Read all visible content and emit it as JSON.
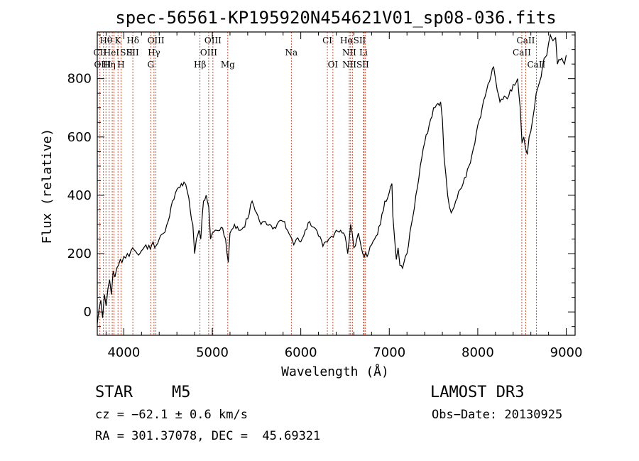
{
  "chart_data": {
    "type": "line",
    "title": "spec-56561-KP195920N454621V01_sp08-036.fits",
    "xlabel": "Wavelength (Å)",
    "ylabel": "Flux (relative)",
    "xlim": [
      3700,
      9100
    ],
    "ylim": [
      -80,
      960
    ],
    "xticks": [
      4000,
      5000,
      6000,
      7000,
      8000,
      9000
    ],
    "yticks": [
      0,
      200,
      400,
      600,
      800
    ],
    "series": [
      {
        "name": "flux",
        "x": [
          3700,
          3720,
          3740,
          3760,
          3780,
          3800,
          3820,
          3840,
          3860,
          3880,
          3900,
          3920,
          3940,
          3960,
          3980,
          4000,
          4020,
          4040,
          4060,
          4080,
          4100,
          4150,
          4200,
          4250,
          4300,
          4330,
          4350,
          4400,
          4450,
          4500,
          4550,
          4600,
          4650,
          4680,
          4720,
          4750,
          4780,
          4800,
          4820,
          4850,
          4870,
          4900,
          4930,
          4960,
          4980,
          5000,
          5050,
          5100,
          5150,
          5180,
          5200,
          5250,
          5300,
          5350,
          5400,
          5450,
          5500,
          5550,
          5600,
          5650,
          5700,
          5750,
          5800,
          5850,
          5900,
          5920,
          5950,
          6000,
          6050,
          6100,
          6150,
          6200,
          6250,
          6300,
          6350,
          6400,
          6450,
          6500,
          6530,
          6563,
          6600,
          6650,
          6700,
          6750,
          6800,
          6850,
          6900,
          6950,
          7000,
          7030,
          7040,
          7060,
          7080,
          7100,
          7120,
          7150,
          7200,
          7250,
          7300,
          7350,
          7400,
          7450,
          7500,
          7550,
          7580,
          7600,
          7620,
          7640,
          7660,
          7680,
          7700,
          7750,
          7800,
          7850,
          7900,
          7950,
          8000,
          8050,
          8100,
          8150,
          8180,
          8200,
          8220,
          8250,
          8300,
          8350,
          8400,
          8450,
          8480,
          8500,
          8520,
          8540,
          8560,
          8580,
          8600,
          8620,
          8640,
          8660,
          8680,
          8700,
          8750,
          8780,
          8800,
          8820,
          8850,
          8880,
          8900,
          8950,
          8980,
          9000
        ],
        "y": [
          -40,
          10,
          40,
          -20,
          60,
          20,
          80,
          110,
          60,
          140,
          120,
          150,
          160,
          180,
          170,
          190,
          185,
          200,
          190,
          210,
          220,
          200,
          210,
          230,
          215,
          240,
          220,
          250,
          270,
          310,
          380,
          420,
          440,
          445,
          410,
          350,
          300,
          200,
          250,
          280,
          250,
          380,
          400,
          360,
          250,
          270,
          280,
          290,
          250,
          170,
          270,
          300,
          280,
          290,
          320,
          380,
          340,
          300,
          310,
          300,
          290,
          310,
          310,
          280,
          250,
          230,
          250,
          240,
          280,
          310,
          290,
          260,
          225,
          240,
          260,
          280,
          280,
          260,
          200,
          300,
          220,
          270,
          200,
          190,
          230,
          260,
          300,
          380,
          410,
          440,
          330,
          250,
          180,
          220,
          160,
          150,
          200,
          300,
          400,
          500,
          580,
          640,
          700,
          715,
          720,
          660,
          530,
          470,
          400,
          360,
          340,
          380,
          420,
          460,
          500,
          560,
          640,
          700,
          760,
          810,
          840,
          800,
          760,
          720,
          740,
          740,
          780,
          800,
          700,
          580,
          600,
          560,
          540,
          600,
          620,
          660,
          700,
          750,
          770,
          790,
          870,
          880,
          920,
          950,
          930,
          940,
          850,
          870,
          850,
          880
        ]
      }
    ],
    "line_labels": [
      {
        "label": "Hθ",
        "x": 3798,
        "row": 1
      },
      {
        "label": "CII",
        "x": 3730,
        "row": 2
      },
      {
        "label": "OIII",
        "x": 3760,
        "row": 3
      },
      {
        "label": "HeI",
        "x": 3860,
        "row": 2
      },
      {
        "label": "Hη",
        "x": 3835,
        "row": 3
      },
      {
        "label": "K",
        "x": 3934,
        "row": 1
      },
      {
        "label": "H",
        "x": 3969,
        "row": 3
      },
      {
        "label": "SII",
        "x": 4030,
        "row": 2
      },
      {
        "label": "Hδ",
        "x": 4102,
        "row": 1
      },
      {
        "label": "SII",
        "x": 4100,
        "row": 2
      },
      {
        "label": "OIII",
        "x": 4363,
        "row": 1
      },
      {
        "label": "Hγ",
        "x": 4341,
        "row": 2
      },
      {
        "label": "G",
        "x": 4304,
        "row": 3
      },
      {
        "label": "OIII",
        "x": 5007,
        "row": 1
      },
      {
        "label": "OIII",
        "x": 4959,
        "row": 2
      },
      {
        "label": "Hβ",
        "x": 4861,
        "row": 3
      },
      {
        "label": "Mg",
        "x": 5175,
        "row": 3
      },
      {
        "label": "Na",
        "x": 5893,
        "row": 2
      },
      {
        "label": "CI",
        "x": 6300,
        "row": 1
      },
      {
        "label": "OI",
        "x": 6363,
        "row": 3
      },
      {
        "label": "HαSII",
        "x": 6590,
        "row": 1
      },
      {
        "label": "NII",
        "x": 6548,
        "row": 2
      },
      {
        "label": "NIISII",
        "x": 6620,
        "row": 3
      },
      {
        "label": "Li",
        "x": 6708,
        "row": 2
      },
      {
        "label": "CaII",
        "x": 8542,
        "row": 1
      },
      {
        "label": "CaII",
        "x": 8498,
        "row": 2
      },
      {
        "label": "CaII",
        "x": 8662,
        "row": 3
      }
    ],
    "line_markers_x": [
      3730,
      3770,
      3798,
      3835,
      3869,
      3889,
      3934,
      3969,
      4102,
      4304,
      4341,
      4363,
      4861,
      4959,
      5007,
      5175,
      5893,
      6300,
      6363,
      6548,
      6563,
      6583,
      6708,
      6716,
      6731,
      8498,
      8542,
      8662
    ]
  },
  "info": {
    "object_type": "STAR",
    "subclass": "M5",
    "survey": "LAMOST DR3",
    "redshift": "cz = −62.1 ± 0.6 km/s",
    "obs_date": "Obs−Date: 20130925",
    "coords": "RA = 301.37078, DEC =  45.69321"
  },
  "colors": {
    "spectrum": "#000000",
    "marker": "#cc2200",
    "axes": "#000000"
  }
}
